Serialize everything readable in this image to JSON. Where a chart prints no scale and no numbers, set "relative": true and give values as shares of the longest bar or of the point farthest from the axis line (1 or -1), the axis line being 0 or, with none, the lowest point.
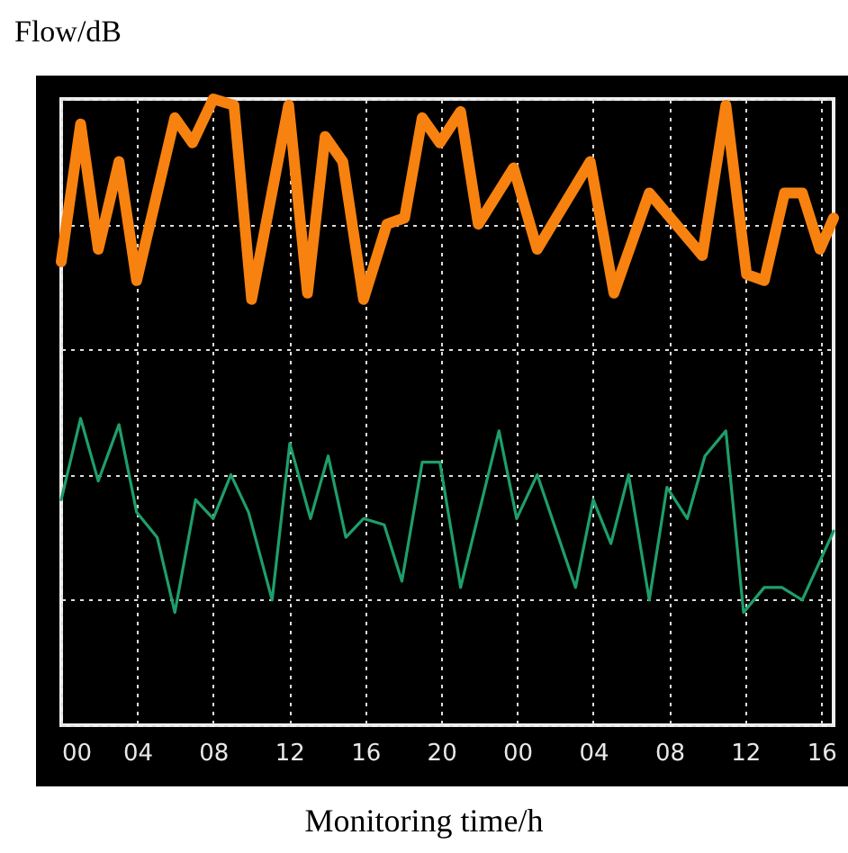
{
  "chart_data": {
    "type": "line",
    "relative": true,
    "ylabel": "Flow/dB",
    "xlabel": "Monitoring time/h",
    "xlim": [
      0,
      40.65
    ],
    "xticks": [
      {
        "value": 0,
        "label": "00"
      },
      {
        "value": 4,
        "label": "04"
      },
      {
        "value": 8,
        "label": "08"
      },
      {
        "value": 12,
        "label": "12"
      },
      {
        "value": 16,
        "label": "16"
      },
      {
        "value": 20,
        "label": "20"
      },
      {
        "value": 24,
        "label": "00"
      },
      {
        "value": 28,
        "label": "04"
      },
      {
        "value": 32,
        "label": "08"
      },
      {
        "value": 36,
        "label": "12"
      },
      {
        "value": 40,
        "label": "16"
      }
    ],
    "grid": true,
    "line_style": "solid",
    "series": [
      {
        "color": "#f7820f",
        "x": [
          0,
          1.02,
          1.95,
          3.04,
          3.97,
          5.98,
          6.91,
          8.0,
          9.09,
          10.02,
          11.97,
          12.96,
          13.89,
          14.82,
          15.91,
          17.14,
          18.07,
          19.0,
          19.93,
          21.02,
          21.95,
          23.81,
          25.05,
          27.84,
          29.09,
          30.95,
          33.74,
          34.98,
          36.07,
          37.0,
          38.07,
          39.0,
          39.93,
          40.65
        ],
        "values": [
          0.74,
          0.96,
          0.76,
          0.9,
          0.71,
          0.97,
          0.93,
          1.0,
          0.99,
          0.68,
          0.99,
          0.69,
          0.94,
          0.9,
          0.68,
          0.8,
          0.81,
          0.97,
          0.93,
          0.98,
          0.8,
          0.89,
          0.76,
          0.9,
          0.69,
          0.85,
          0.75,
          0.99,
          0.72,
          0.71,
          0.85,
          0.85,
          0.76,
          0.81
        ]
      },
      {
        "color": "#1f9e6a",
        "x": [
          0,
          1.02,
          1.95,
          3.04,
          3.97,
          5.05,
          5.98,
          7.07,
          8.0,
          8.93,
          9.86,
          11.1,
          12.03,
          13.12,
          14.05,
          14.98,
          15.91,
          17.0,
          17.93,
          19.0,
          19.93,
          21.02,
          23.04,
          23.97,
          25.05,
          27.07,
          28.0,
          28.93,
          29.86,
          30.95,
          31.88,
          32.95,
          33.88,
          34.98,
          35.91,
          37.0,
          37.93,
          39.0,
          40.65
        ],
        "values": [
          0.36,
          0.49,
          0.39,
          0.48,
          0.34,
          0.3,
          0.18,
          0.36,
          0.33,
          0.4,
          0.34,
          0.2,
          0.45,
          0.33,
          0.43,
          0.3,
          0.33,
          0.32,
          0.23,
          0.42,
          0.42,
          0.22,
          0.47,
          0.33,
          0.4,
          0.22,
          0.36,
          0.29,
          0.4,
          0.2,
          0.38,
          0.33,
          0.43,
          0.47,
          0.18,
          0.22,
          0.22,
          0.2,
          0.31
        ]
      }
    ]
  }
}
